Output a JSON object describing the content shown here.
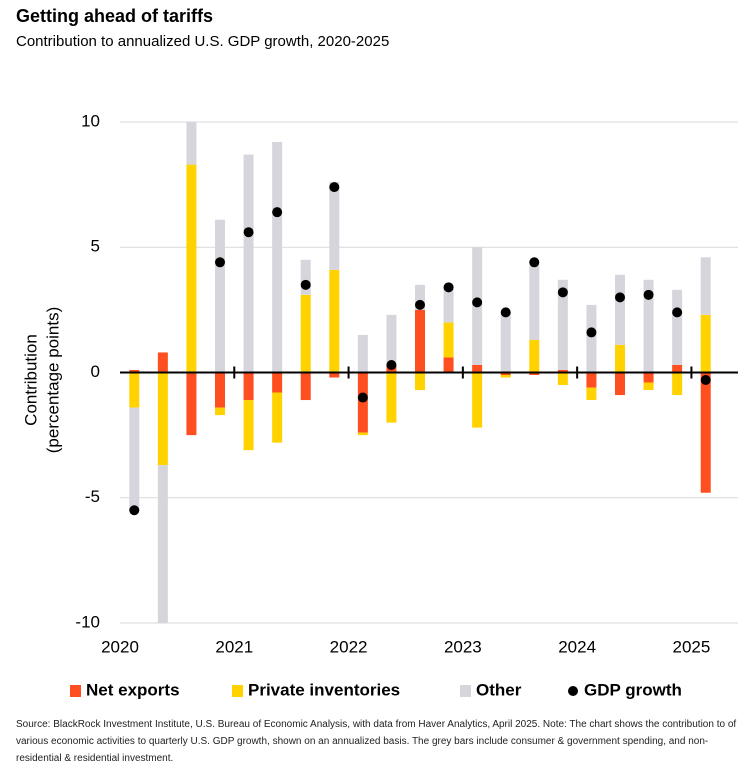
{
  "chart_data": {
    "type": "bar",
    "stacked": true,
    "title": "Getting ahead of tariffs",
    "subtitle": "Contribution to annualized U.S. GDP growth, 2020-2025",
    "ylabel": [
      "Contribution",
      "(percentage points)"
    ],
    "source": "Source: BlackRock Investment Institute, U.S. Bureau of Economic Analysis, with data from Haver Analytics, April 2025. Note: The chart shows the contribution to of various economic activities to quarterly U.S. GDP growth, shown on an annualized basis. The grey bars include consumer & government spending, and non-residential & residential investment.",
    "x": [
      2020.125,
      2020.375,
      2020.625,
      2020.875,
      2021.125,
      2021.375,
      2021.625,
      2021.875,
      2022.125,
      2022.375,
      2022.625,
      2022.875,
      2023.125,
      2023.375,
      2023.625,
      2023.875,
      2024.125,
      2024.375,
      2024.625,
      2024.875,
      2025.125
    ],
    "series": [
      {
        "name": "Net exports",
        "color": "#ff4e1f",
        "values": [
          0.1,
          0.8,
          -2.5,
          -1.4,
          -1.1,
          -0.8,
          -1.1,
          -0.2,
          -2.4,
          0.3,
          2.5,
          0.6,
          0.3,
          -0.1,
          -0.1,
          0.1,
          -0.6,
          -0.9,
          -0.4,
          0.3,
          -4.8
        ]
      },
      {
        "name": "Private inventories",
        "color": "#ffd200",
        "values": [
          -1.4,
          -3.7,
          8.3,
          -0.3,
          -2.0,
          -2.0,
          3.1,
          4.1,
          -0.1,
          -2.0,
          -0.7,
          1.4,
          -2.2,
          -0.1,
          1.3,
          -0.5,
          -0.5,
          1.1,
          -0.3,
          -0.9,
          2.3
        ]
      },
      {
        "name": "Other",
        "color": "#d6d5dc",
        "values": [
          -4.1,
          -7.0,
          2.0,
          6.1,
          8.7,
          9.2,
          1.4,
          3.5,
          1.5,
          2.0,
          1.0,
          1.4,
          4.7,
          2.4,
          3.1,
          3.6,
          2.7,
          2.8,
          3.7,
          3.0,
          2.3
        ]
      },
      {
        "name": "GDP growth",
        "color": "#000000",
        "kind": "dot",
        "values": [
          -5.5,
          null,
          null,
          4.4,
          5.6,
          6.4,
          3.5,
          7.4,
          -1.0,
          0.3,
          2.7,
          3.4,
          2.8,
          2.4,
          4.4,
          3.2,
          1.6,
          3.0,
          3.1,
          2.4,
          -0.3
        ]
      }
    ],
    "xlim": [
      2020,
      2025.25
    ],
    "xticks": [
      2020,
      2021,
      2022,
      2023,
      2024,
      2025
    ],
    "ylim": [
      -10,
      10
    ],
    "yticks": [
      -10,
      -5,
      0,
      5,
      10
    ],
    "grid": true,
    "legend": "bottom"
  }
}
